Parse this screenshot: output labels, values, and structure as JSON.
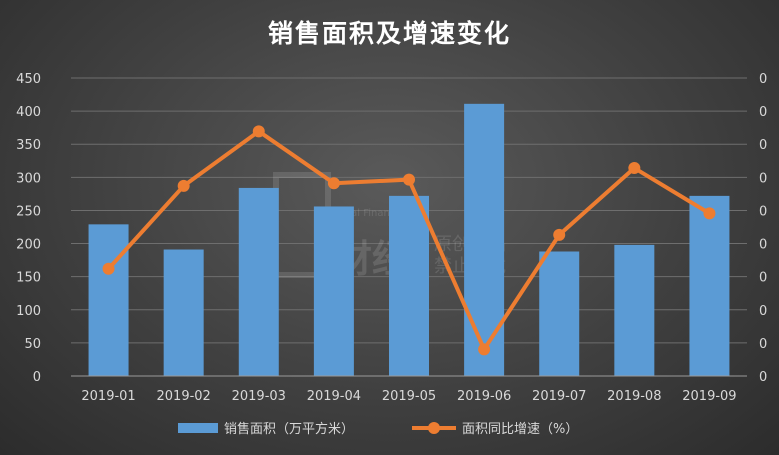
{
  "chart_data": {
    "type": "bar+line",
    "title": "销售面积及增速变化",
    "categories": [
      "2019-01",
      "2019-02",
      "2019-03",
      "2019-04",
      "2019-05",
      "2019-06",
      "2019-07",
      "2019-08",
      "2019-09"
    ],
    "series": [
      {
        "name": "销售面积（万平方米）",
        "type": "bar",
        "axis": "left",
        "color": "#5b9bd5",
        "values": [
          229,
          191,
          284,
          256,
          272,
          411,
          188,
          198,
          272
        ]
      },
      {
        "name": "面积同比增速（%）",
        "type": "line",
        "axis": "right",
        "color": "#ed7d31",
        "values": [
          -46.6,
          6.2,
          41.0,
          7.9,
          10.2,
          -98.0,
          -25.0,
          17.6,
          -11.3
        ]
      }
    ],
    "left_axis": {
      "min": 0,
      "max": 450,
      "step": 50,
      "ticks": [
        "0",
        "50",
        "100",
        "150",
        "200",
        "250",
        "300",
        "350",
        "400",
        "450"
      ]
    },
    "right_axis": {
      "tick_label": "0",
      "range": [
        -115,
        75
      ]
    },
    "grid": true,
    "legend_position": "bottom"
  },
  "watermark": {
    "lines": [
      "原创作品",
      "禁止转载"
    ],
    "logo_text": "财经",
    "logo_subtext": "Real Finance"
  }
}
